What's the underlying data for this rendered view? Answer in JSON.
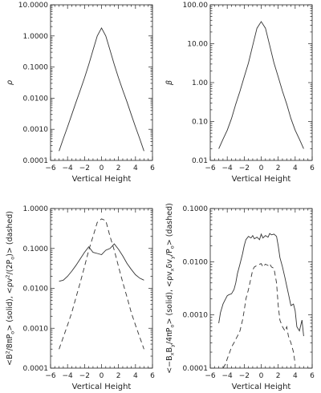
{
  "chart_data": [
    {
      "type": "line",
      "ylabel_parts": [
        {
          "t": "ρ",
          "italic": true
        }
      ],
      "xlabel": "Vertical Height",
      "xlim": [
        -6,
        6
      ],
      "xticks": [
        -6,
        -4,
        -2,
        0,
        2,
        4,
        6
      ],
      "xtick_labels": [
        "−6",
        "−4",
        "−2",
        "0",
        "2",
        "4",
        "6"
      ],
      "ylog": true,
      "ylim": [
        0.0001,
        10
      ],
      "yticks": [
        0.0001,
        0.001,
        0.01,
        0.1,
        1,
        10
      ],
      "ytick_labels": [
        "0.0001",
        "0.0010",
        "0.0100",
        "0.1000",
        "1.0000",
        "10.0000"
      ],
      "grid": false,
      "series": [
        {
          "style": "solid",
          "x": [
            -5,
            -4.5,
            -4,
            -3.5,
            -3,
            -2.5,
            -2,
            -1.5,
            -1,
            -0.5,
            0,
            0.5,
            1,
            1.5,
            2,
            2.5,
            3,
            3.5,
            4,
            4.5,
            5
          ],
          "y": [
            0.0002,
            0.0005,
            0.0012,
            0.003,
            0.0075,
            0.018,
            0.045,
            0.12,
            0.35,
            1.0,
            1.8,
            1.0,
            0.35,
            0.12,
            0.045,
            0.018,
            0.0075,
            0.003,
            0.0012,
            0.0005,
            0.0002
          ]
        }
      ]
    },
    {
      "type": "line",
      "ylabel_parts": [
        {
          "t": "β",
          "italic": true
        }
      ],
      "xlabel": "Vertical Height",
      "xlim": [
        -6,
        6
      ],
      "xticks": [
        -6,
        -4,
        -2,
        0,
        2,
        4,
        6
      ],
      "xtick_labels": [
        "−6",
        "−4",
        "−2",
        "0",
        "2",
        "4",
        "6"
      ],
      "ylog": true,
      "ylim": [
        0.01,
        100
      ],
      "yticks": [
        0.01,
        0.1,
        1,
        10,
        100
      ],
      "ytick_labels": [
        "0.01",
        "0.10",
        "1.00",
        "10.00",
        "100.00"
      ],
      "grid": false,
      "series": [
        {
          "style": "solid",
          "x": [
            -5,
            -4.5,
            -4,
            -3.5,
            -3,
            -2.5,
            -2,
            -1.5,
            -1,
            -0.5,
            0,
            0.5,
            1,
            1.5,
            2,
            2.5,
            3,
            3.5,
            4,
            4.5,
            5
          ],
          "y": [
            0.02,
            0.035,
            0.06,
            0.12,
            0.28,
            0.6,
            1.4,
            3.2,
            9,
            25,
            37,
            25,
            9,
            3.2,
            1.4,
            0.6,
            0.28,
            0.12,
            0.06,
            0.035,
            0.02
          ]
        }
      ]
    },
    {
      "type": "line",
      "ylabel_parts": [
        {
          "t": "<B"
        },
        {
          "t": "2",
          "sup": true
        },
        {
          "t": "/8πP"
        },
        {
          "t": "o",
          "sub": true
        },
        {
          "t": "> (solid), <ρv"
        },
        {
          "t": "2",
          "sup": true
        },
        {
          "t": "/(2P"
        },
        {
          "t": "o",
          "sub": true
        },
        {
          "t": ")> (dashed)"
        }
      ],
      "xlabel": "Vertical Height",
      "xlim": [
        -6,
        6
      ],
      "xticks": [
        -6,
        -4,
        -2,
        0,
        2,
        4,
        6
      ],
      "xtick_labels": [
        "−6",
        "−4",
        "−2",
        "0",
        "2",
        "4",
        "6"
      ],
      "ylog": true,
      "ylim": [
        0.0001,
        1
      ],
      "yticks": [
        0.0001,
        0.001,
        0.01,
        0.1,
        1
      ],
      "ytick_labels": [
        "0.0001",
        "0.0010",
        "0.0100",
        "0.1000",
        "1.0000"
      ],
      "grid": false,
      "series": [
        {
          "style": "solid",
          "x": [
            -5,
            -4.5,
            -4,
            -3.5,
            -3,
            -2.5,
            -2,
            -1.5,
            -1,
            -0.5,
            0,
            0.5,
            1,
            1.5,
            2,
            2.5,
            3,
            3.5,
            4,
            4.5,
            5
          ],
          "y": [
            0.015,
            0.016,
            0.02,
            0.027,
            0.038,
            0.055,
            0.08,
            0.11,
            0.08,
            0.075,
            0.07,
            0.09,
            0.1,
            0.13,
            0.095,
            0.065,
            0.042,
            0.03,
            0.022,
            0.018,
            0.016
          ]
        },
        {
          "style": "dashed",
          "x": [
            -5,
            -4.5,
            -4,
            -3.5,
            -3,
            -2.5,
            -2,
            -1.5,
            -1,
            -0.5,
            0,
            0.5,
            1,
            1.5,
            2,
            2.5,
            3,
            3.5,
            4,
            4.5,
            5
          ],
          "y": [
            0.0003,
            0.0006,
            0.0012,
            0.0025,
            0.006,
            0.014,
            0.035,
            0.09,
            0.2,
            0.45,
            0.55,
            0.5,
            0.2,
            0.09,
            0.035,
            0.014,
            0.006,
            0.0025,
            0.0012,
            0.0006,
            0.0003
          ]
        }
      ]
    },
    {
      "type": "line",
      "ylabel_parts": [
        {
          "t": "<−B"
        },
        {
          "t": "x",
          "sub": true
        },
        {
          "t": "B"
        },
        {
          "t": "y",
          "sub": true
        },
        {
          "t": "/4πP"
        },
        {
          "t": "o",
          "sub": true
        },
        {
          "t": "> (solid), <ρv"
        },
        {
          "t": "x",
          "sub": true
        },
        {
          "t": "δv"
        },
        {
          "t": "y",
          "sub": true
        },
        {
          "t": "/P"
        },
        {
          "t": "o",
          "sub": true
        },
        {
          "t": "> (dashed)"
        }
      ],
      "xlabel": "Vertical Height",
      "xlim": [
        -6,
        6
      ],
      "xticks": [
        -6,
        -4,
        -2,
        0,
        2,
        4,
        6
      ],
      "xtick_labels": [
        "−6",
        "−4",
        "−2",
        "0",
        "2",
        "4",
        "6"
      ],
      "ylog": true,
      "ylim": [
        0.0001,
        0.1
      ],
      "yticks": [
        0.0001,
        0.001,
        0.01,
        0.1
      ],
      "ytick_labels": [
        "0.0001",
        "0.0010",
        "0.0100",
        "0.1000"
      ],
      "grid": false,
      "series": [
        {
          "style": "solid",
          "x": [
            -5,
            -4.8,
            -4.5,
            -4.2,
            -4,
            -3.8,
            -3.5,
            -3.2,
            -3,
            -2.8,
            -2.5,
            -2.2,
            -2,
            -1.8,
            -1.5,
            -1.2,
            -1,
            -0.8,
            -0.5,
            -0.2,
            0,
            0.2,
            0.5,
            0.8,
            1,
            1.2,
            1.5,
            1.8,
            2,
            2.2,
            2.5,
            2.8,
            3,
            3.2,
            3.5,
            3.8,
            4,
            4.2,
            4.5,
            4.8,
            5
          ],
          "y": [
            0.0007,
            0.0011,
            0.0016,
            0.002,
            0.0023,
            0.0024,
            0.0025,
            0.003,
            0.004,
            0.006,
            0.009,
            0.014,
            0.02,
            0.026,
            0.03,
            0.028,
            0.031,
            0.027,
            0.029,
            0.026,
            0.033,
            0.028,
            0.031,
            0.029,
            0.034,
            0.032,
            0.033,
            0.03,
            0.02,
            0.012,
            0.008,
            0.005,
            0.0035,
            0.0025,
            0.0015,
            0.0016,
            0.0012,
            0.0006,
            0.0005,
            0.0008,
            0.0004
          ]
        },
        {
          "style": "dashed",
          "x": [
            -4.5,
            -4.2,
            -4,
            -3.7,
            -3.5,
            -3.2,
            -3,
            -2.8,
            -2.5,
            -2.2,
            -2,
            -1.8,
            -1.5,
            -1.2,
            -1,
            -0.8,
            -0.5,
            -0.2,
            0,
            0.2,
            0.5,
            0.8,
            1,
            1.2,
            1.5,
            1.8,
            2,
            2.2,
            2.5,
            2.8,
            3,
            3.2,
            3.5,
            3.8,
            4
          ],
          "y": [
            0.0001,
            0.00012,
            0.00015,
            0.0002,
            0.00025,
            0.0003,
            0.00035,
            0.0004,
            0.0005,
            0.0008,
            0.0012,
            0.002,
            0.003,
            0.005,
            0.007,
            0.008,
            0.0085,
            0.009,
            0.0092,
            0.008,
            0.009,
            0.0085,
            0.0092,
            0.008,
            0.0075,
            0.004,
            0.0015,
            0.0008,
            0.0006,
            0.0005,
            0.0006,
            0.0004,
            0.0003,
            0.0002,
            0.00012
          ]
        }
      ]
    }
  ]
}
